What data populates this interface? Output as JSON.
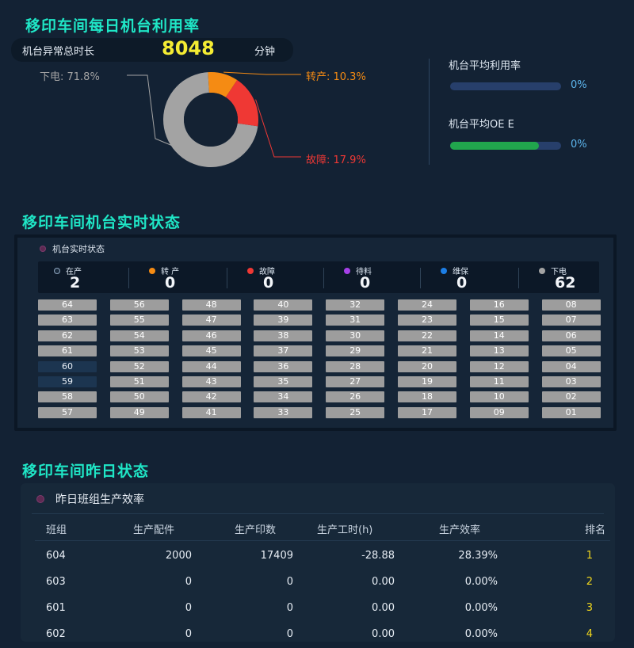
{
  "section1": {
    "title": "移印车间每日机台利用率",
    "abnormal_label": "机台异常总时长",
    "abnormal_value": "8048",
    "abnormal_unit": "分钟",
    "pie": {
      "slices": [
        {
          "name": "下电",
          "label": "下电: 71.8%",
          "value": 71.8,
          "color": "#a3a3a3"
        },
        {
          "name": "转产",
          "label": "转产: 10.3%",
          "value": 10.3,
          "color": "#f58b13"
        },
        {
          "name": "故障",
          "label": "故障: 17.9%",
          "value": 17.9,
          "color": "#ef3834"
        }
      ]
    },
    "utilization_label": "机台平均利用率",
    "utilization_value": "0%",
    "utilization_level": 0,
    "oee_label": "机台平均OE E",
    "oee_value": "0%",
    "oee_level": 0.8
  },
  "section2": {
    "title": "移印车间机台实时状态",
    "panel_title": "机台实时状态",
    "statuses": [
      {
        "name": "在产",
        "count": "2",
        "color": "#1a2a3c",
        "border": "#8fa6bf"
      },
      {
        "name": "转 产",
        "count": "0",
        "color": "#f58b13"
      },
      {
        "name": "故障",
        "count": "0",
        "color": "#ef3834"
      },
      {
        "name": "待料",
        "count": "0",
        "color": "#a640e8"
      },
      {
        "name": "维保",
        "count": "0",
        "color": "#1c7ee6"
      },
      {
        "name": "下电",
        "count": "62",
        "color": "#a3a3a3"
      }
    ],
    "machines": [
      [
        "64",
        "63",
        "62",
        "61",
        "60",
        "59",
        "58",
        "57"
      ],
      [
        "56",
        "55",
        "54",
        "53",
        "52",
        "51",
        "50",
        "49"
      ],
      [
        "48",
        "47",
        "46",
        "45",
        "44",
        "43",
        "42",
        "41"
      ],
      [
        "40",
        "39",
        "38",
        "37",
        "36",
        "35",
        "34",
        "33"
      ],
      [
        "32",
        "31",
        "30",
        "29",
        "28",
        "27",
        "26",
        "25"
      ],
      [
        "24",
        "23",
        "22",
        "21",
        "20",
        "19",
        "18",
        "17"
      ],
      [
        "16",
        "15",
        "14",
        "13",
        "12",
        "11",
        "10",
        "09"
      ],
      [
        "08",
        "07",
        "06",
        "05",
        "04",
        "03",
        "02",
        "01"
      ]
    ],
    "active_machines": [
      "60",
      "59"
    ]
  },
  "section3": {
    "title": "移印车间昨日状态",
    "panel_title": "昨日班组生产效率",
    "columns": [
      "班组",
      "生产配件",
      "生产印数",
      "生产工时(h)",
      "生产效率",
      "排名"
    ],
    "rows": [
      [
        "604",
        "2000",
        "17409",
        "-28.88",
        "28.39%",
        "1"
      ],
      [
        "603",
        "0",
        "0",
        "0.00",
        "0.00%",
        "2"
      ],
      [
        "601",
        "0",
        "0",
        "0.00",
        "0.00%",
        "3"
      ],
      [
        "602",
        "0",
        "0",
        "0.00",
        "0.00%",
        "4"
      ]
    ],
    "accent_rank": "#f0d61c"
  }
}
